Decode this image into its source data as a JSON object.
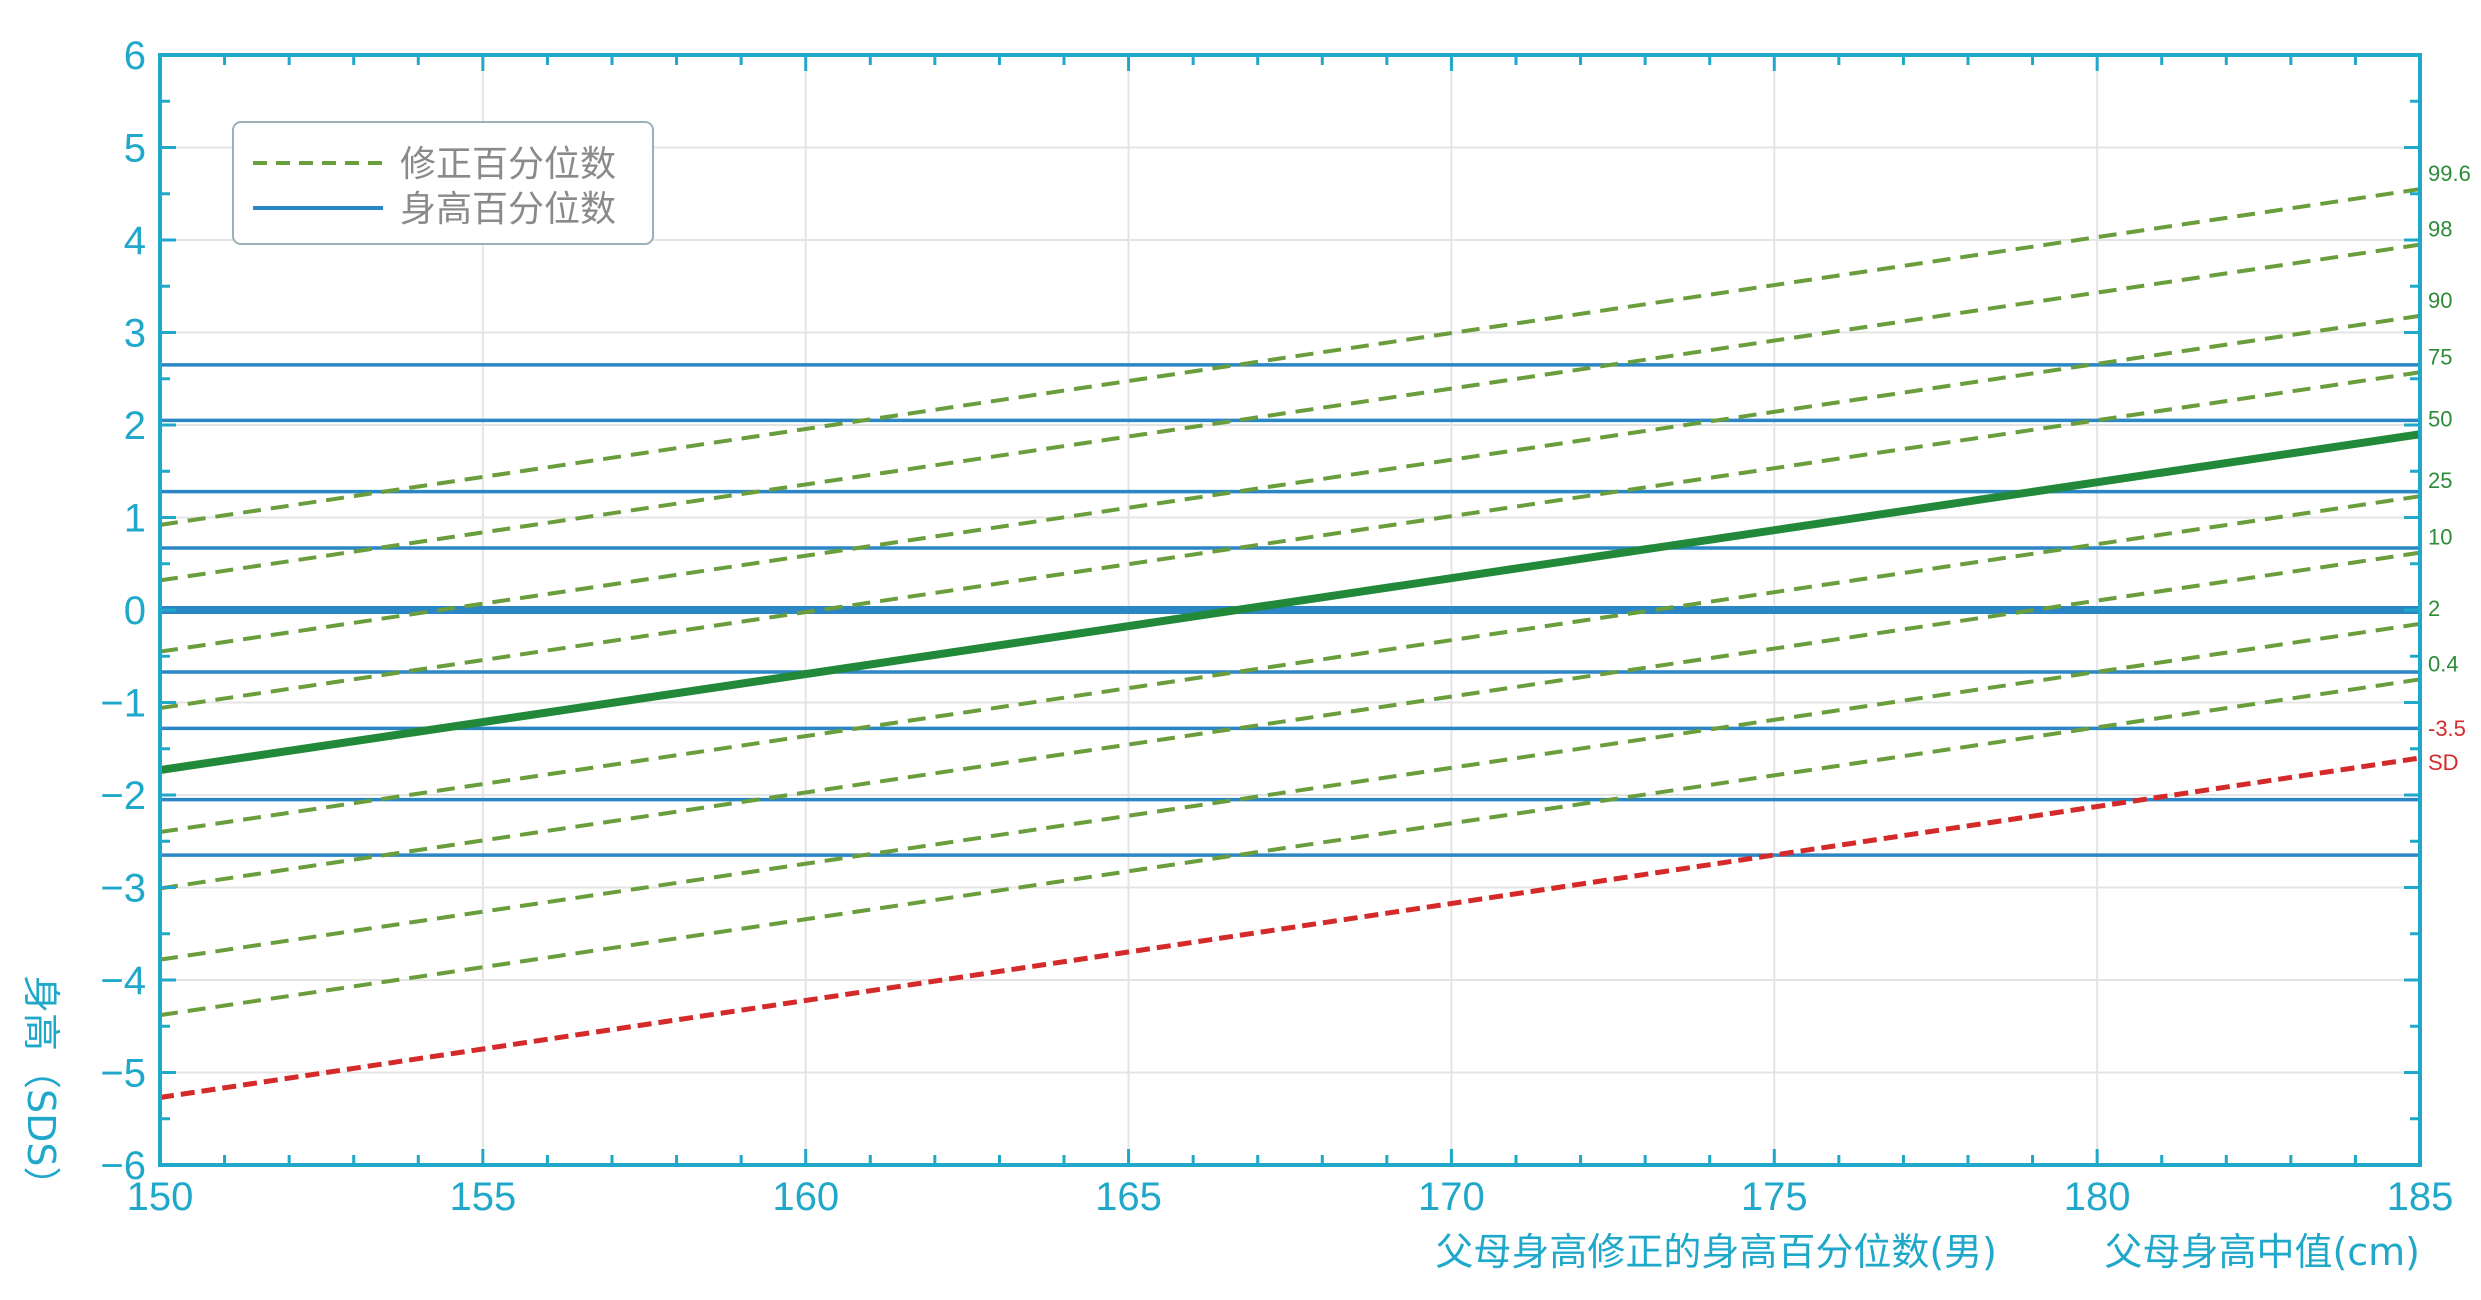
{
  "chart_data": {
    "type": "line",
    "xlim": [
      150,
      185
    ],
    "ylim": [
      -6,
      6
    ],
    "x_ticks": [
      "150",
      "155",
      "160",
      "165",
      "170",
      "175",
      "180",
      "185"
    ],
    "y_ticks": [
      "6",
      "5",
      "4",
      "3",
      "2",
      "1",
      "0",
      "−1",
      "−2",
      "−3",
      "−4",
      "−5",
      "−6"
    ],
    "xlabel_left": "父母身高修正的身高百分位数(男)",
    "xlabel_right": "父母身高中值(cm)",
    "ylabel": "身高（SDS）",
    "grid": true,
    "legend": {
      "placement": "top-left",
      "entries": [
        {
          "label": "修正百分位数",
          "style": "dashed",
          "color": "#6a9e3c"
        },
        {
          "label": "身高百分位数",
          "style": "solid",
          "color": "#2a86c4"
        }
      ]
    },
    "horizontal_series": [
      {
        "name": "99.6",
        "y": 2.65
      },
      {
        "name": "98",
        "y": 2.05
      },
      {
        "name": "90",
        "y": 1.28
      },
      {
        "name": "75",
        "y": 0.67
      },
      {
        "name": "50",
        "y": 0.0,
        "bold": true
      },
      {
        "name": "25",
        "y": -0.67
      },
      {
        "name": "10",
        "y": -1.28
      },
      {
        "name": "2",
        "y": -2.05
      },
      {
        "name": "0.4",
        "y": -2.65
      }
    ],
    "diagonal_series": [
      {
        "name": "99.6",
        "x": [
          150,
          185
        ],
        "y": [
          0.92,
          4.55
        ],
        "style": "dashed"
      },
      {
        "name": "98",
        "x": [
          150,
          185
        ],
        "y": [
          0.32,
          3.95
        ],
        "style": "dashed"
      },
      {
        "name": "90",
        "x": [
          150,
          185
        ],
        "y": [
          -0.45,
          3.18
        ],
        "style": "dashed"
      },
      {
        "name": "75",
        "x": [
          150,
          185
        ],
        "y": [
          -1.06,
          2.57
        ],
        "style": "dashed"
      },
      {
        "name": "50",
        "x": [
          150,
          185
        ],
        "y": [
          -1.73,
          1.9
        ],
        "style": "solid-bold"
      },
      {
        "name": "25",
        "x": [
          150,
          185
        ],
        "y": [
          -2.4,
          1.23
        ],
        "style": "dashed"
      },
      {
        "name": "10",
        "x": [
          150,
          185
        ],
        "y": [
          -3.01,
          0.62
        ],
        "style": "dashed"
      },
      {
        "name": "2",
        "x": [
          150,
          185
        ],
        "y": [
          -3.78,
          -0.15
        ],
        "style": "dashed"
      },
      {
        "name": "0.4",
        "x": [
          150,
          185
        ],
        "y": [
          -4.38,
          -0.75
        ],
        "style": "dashed"
      },
      {
        "name": "-3.5 SD",
        "x": [
          150,
          185
        ],
        "y": [
          -5.27,
          -1.6
        ],
        "style": "dashed-red"
      }
    ],
    "right_labels": [
      "99.6",
      "98",
      "90",
      "75",
      "50",
      "25",
      "10",
      "2",
      "0.4"
    ],
    "red_label": [
      "-3.5",
      "SD"
    ]
  },
  "colors": {
    "axis": "#1fa8c9",
    "grid": "#e4e4e4",
    "blue": "#2a86c4",
    "green_dashed": "#6a9e3c",
    "green_bold": "#22893a",
    "red": "#d42a2a",
    "right_label_green": "#2e8b3a"
  }
}
